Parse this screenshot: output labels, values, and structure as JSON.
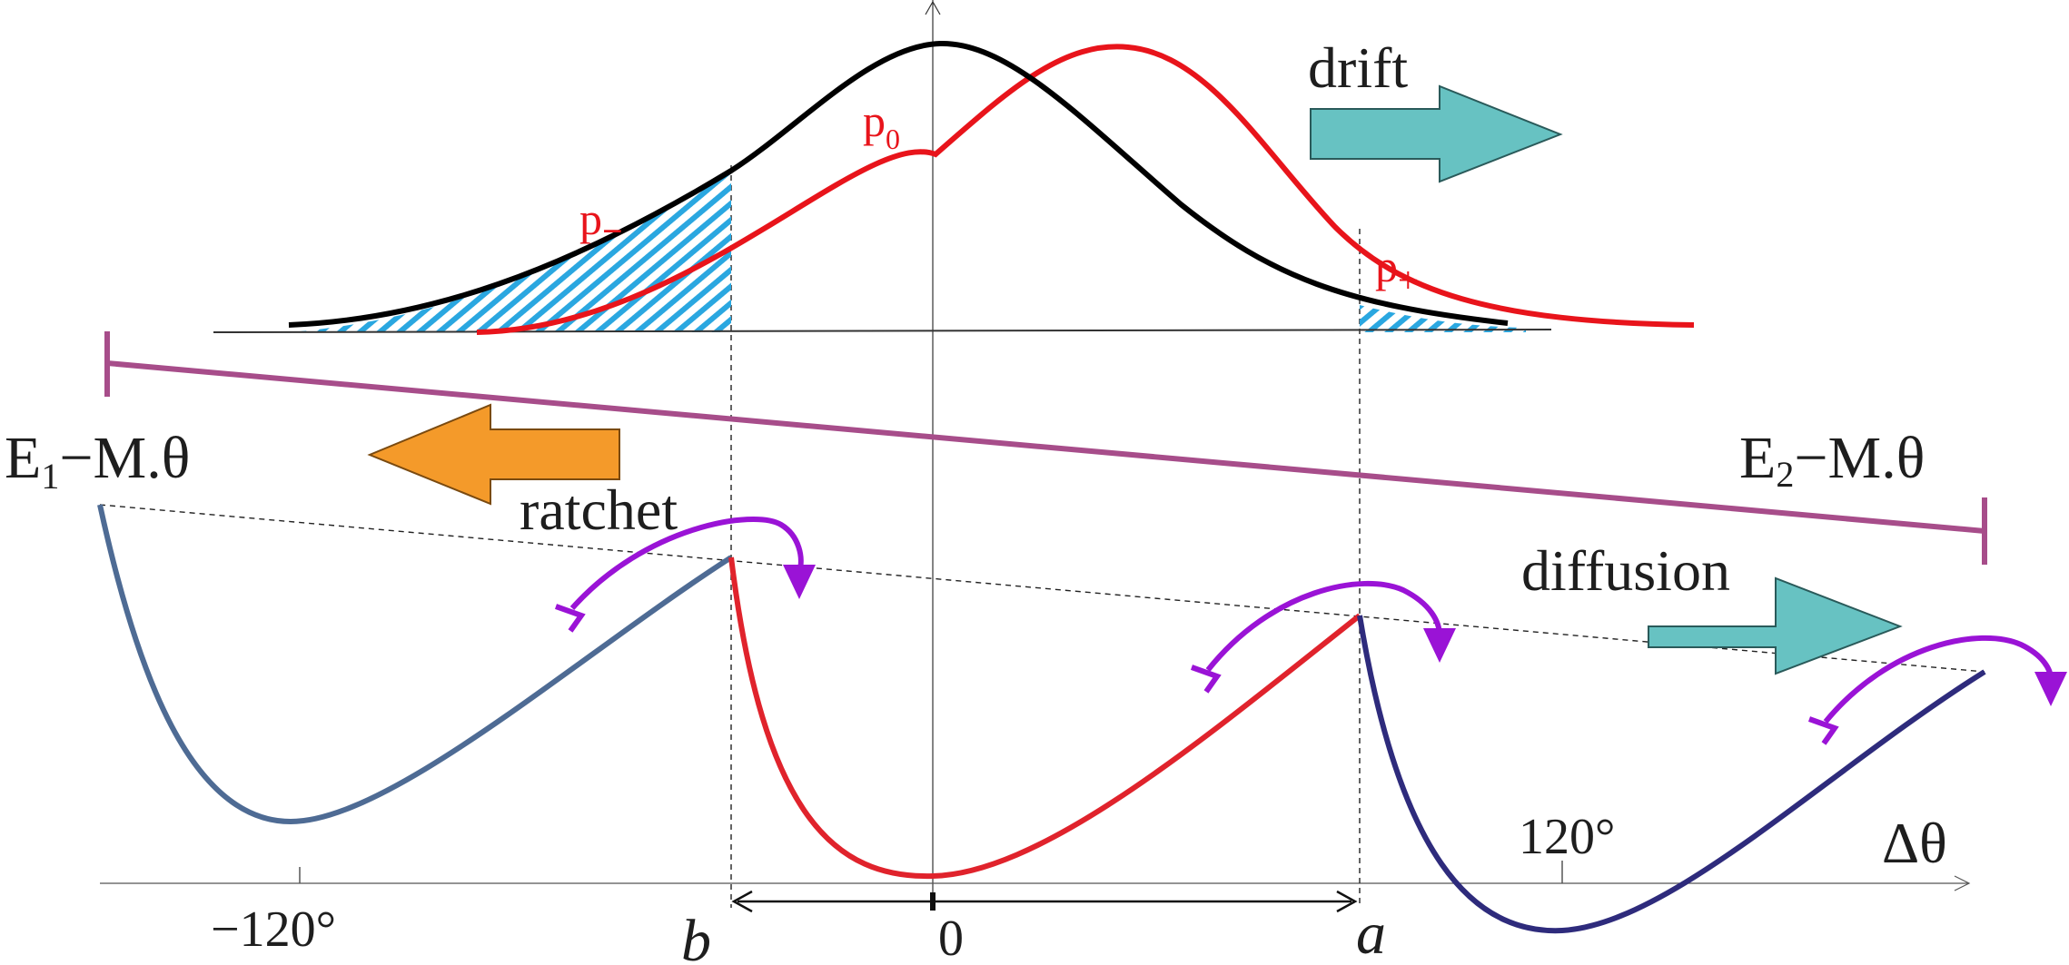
{
  "labels": {
    "drift": "drift",
    "ratchet": "ratchet",
    "diffusion": "diffusion",
    "p_zero_base": "p",
    "p_zero_sub": "0",
    "p_minus_base": "p",
    "p_minus_sub": "−",
    "p_plus_base": "p",
    "p_plus_sub": "+",
    "e1_E": "E",
    "e1_sub": "1",
    "e1_rest": "−M.θ",
    "e2_E": "E",
    "e2_sub": "2",
    "e2_rest": "−M.θ",
    "tick_neg120": "−120°",
    "tick_120": "120°",
    "axis_delta_theta": "Δθ",
    "marker_b": "b",
    "marker_zero": "0",
    "marker_a": "a"
  },
  "colors": {
    "black_curve": "#000000",
    "red_curve": "#e8141b",
    "hatch": "#2aa7e0",
    "tilt_bar": "#a74d8a",
    "drift_arrow": "#67c2c2",
    "ratchet_arrow": "#f49a2a",
    "hop_arrow": "#9a13d6",
    "well_left": "#4e6b94",
    "well_mid": "#e0232c",
    "well_right": "#2e2b7c"
  }
}
